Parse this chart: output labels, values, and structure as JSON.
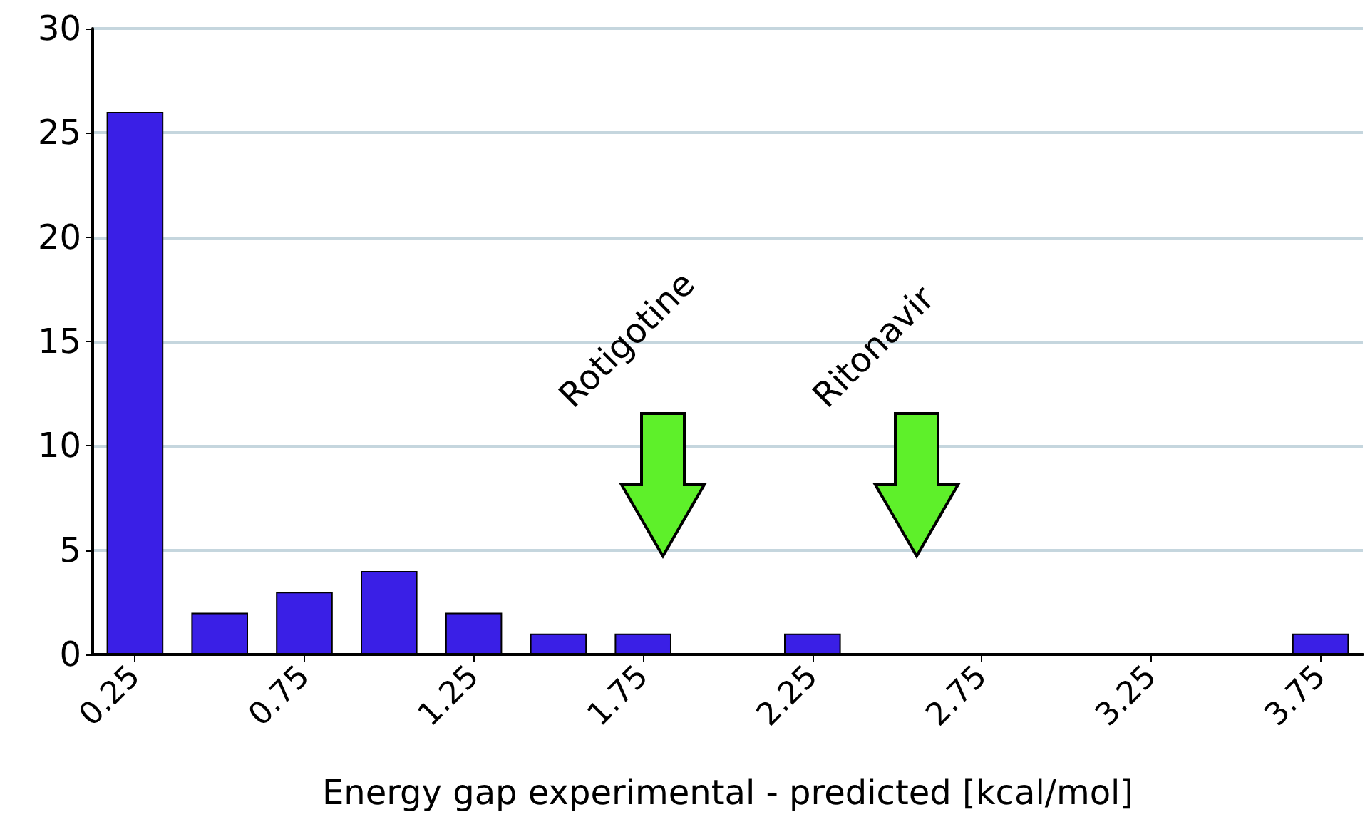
{
  "chart_data": {
    "type": "bar",
    "xlabel": "Energy gap experimental - predicted [kcal/mol]",
    "x": [
      0.25,
      0.5,
      0.75,
      1.0,
      1.25,
      1.5,
      1.75,
      2.0,
      2.25,
      2.5,
      2.75,
      3.0,
      3.25,
      3.5,
      3.75
    ],
    "values": [
      26,
      2,
      3,
      4,
      2,
      1,
      1,
      0,
      1,
      0,
      0,
      0,
      0,
      0,
      1
    ],
    "color": "#3a1fe6",
    "xlim": [
      0.125,
      3.875
    ],
    "xticks": [
      0.25,
      0.75,
      1.25,
      1.75,
      2.25,
      2.75,
      3.25,
      3.75
    ],
    "ylim": [
      0,
      30
    ],
    "yticks": [
      0,
      5,
      10,
      15,
      20,
      25,
      30
    ],
    "grid": "y",
    "annotations": [
      "Rotigotine",
      "Ritonavir"
    ]
  }
}
